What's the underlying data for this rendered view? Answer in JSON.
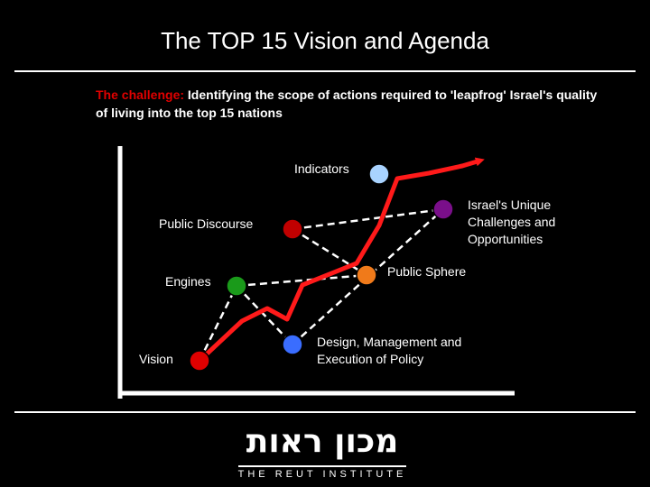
{
  "title": "The TOP 15 Vision and Agenda",
  "challenge": {
    "lead": "The challenge:",
    "text": " Identifying the scope of actions required to 'leapfrog' Israel's quality of living into the top 15 nations"
  },
  "nodes": {
    "indicators": {
      "label": "Indicators",
      "color": "#a9d3ff"
    },
    "unique": {
      "label": "Israel's Unique Challenges and Opportunities",
      "color": "#7a0f8a"
    },
    "discourse": {
      "label": "Public Discourse",
      "color": "#c00000"
    },
    "sphere": {
      "label": "Public Sphere",
      "color": "#f07a1a"
    },
    "engines": {
      "label": "Engines",
      "color": "#1a9a1a"
    },
    "policy": {
      "label": "Design, Management and Execution of Policy",
      "color": "#3a6dff"
    },
    "vision": {
      "label": "Vision",
      "color": "#e00000"
    }
  },
  "colors": {
    "arrow": "#ff1a1a",
    "axis": "#ffffff"
  },
  "logo": {
    "hebrew": "מכון ראות",
    "english": "THE REUT INSTITUTE"
  }
}
